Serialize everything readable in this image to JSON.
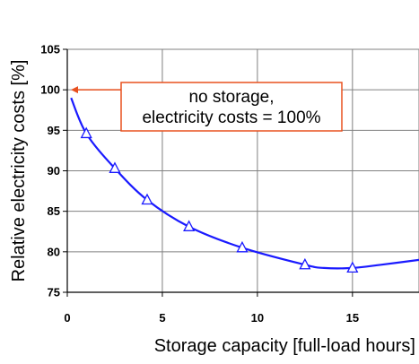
{
  "chart_data": {
    "type": "line",
    "title": "",
    "xlabel": "Storage capacity [full-load hours]",
    "ylabel": "Relative electricity costs [%]",
    "xlim": [
      0,
      18.5
    ],
    "ylim": [
      75,
      105
    ],
    "x_ticks": [
      "0",
      "5",
      "10",
      "15"
    ],
    "x_tick_values": [
      0,
      5,
      10,
      15
    ],
    "y_ticks": [
      "75",
      "80",
      "85",
      "90",
      "95",
      "100",
      "105"
    ],
    "y_tick_values": [
      75,
      80,
      85,
      90,
      95,
      100,
      105
    ],
    "grid": true,
    "line_color": "#1a1aff",
    "marker": "open-triangle",
    "series": [
      {
        "curve": [
          [
            0.2,
            99.0
          ],
          [
            1.0,
            94.6
          ],
          [
            2.5,
            90.3
          ],
          [
            4.2,
            86.4
          ],
          [
            6.4,
            83.1
          ],
          [
            9.2,
            80.5
          ],
          [
            12.5,
            78.4
          ],
          [
            13.5,
            78.0
          ],
          [
            15.0,
            78.0
          ],
          [
            16.5,
            78.4
          ],
          [
            18.5,
            79.0
          ]
        ],
        "markers": [
          [
            1.0,
            94.6
          ],
          [
            2.5,
            90.3
          ],
          [
            4.2,
            86.4
          ],
          [
            6.4,
            83.1
          ],
          [
            9.2,
            80.5
          ],
          [
            12.5,
            78.4
          ],
          [
            15.0,
            78.0
          ]
        ]
      }
    ],
    "annotation": {
      "lines": [
        "no storage,",
        "electricity costs = 100%"
      ],
      "points_to": [
        0,
        100
      ],
      "border_color": "#e8501f",
      "arrow_color": "#e8501f"
    }
  }
}
